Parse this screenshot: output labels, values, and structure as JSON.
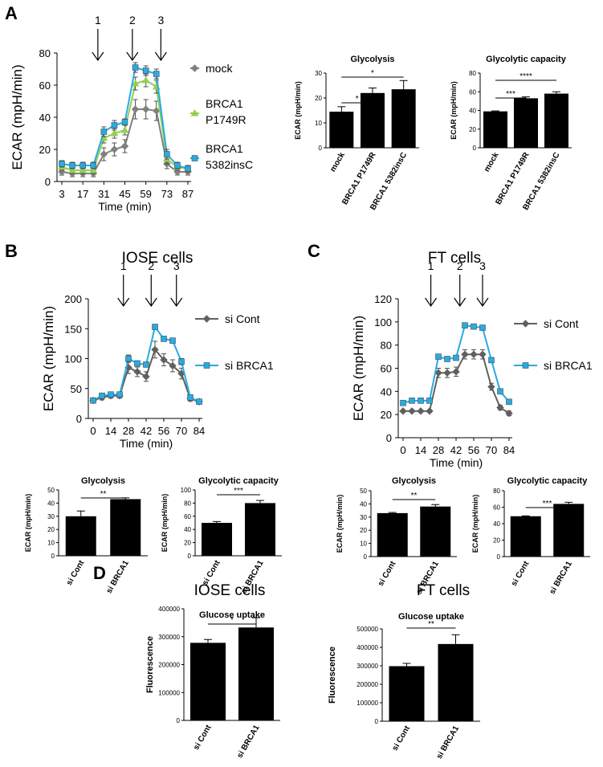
{
  "panels": {
    "A": "A",
    "B": "B",
    "C": "C",
    "D": "D"
  },
  "section_titles": {
    "iose_b": "IOSE cells",
    "ft_c": "FT cells",
    "iose_d": "IOSE cells",
    "ft_d": "FT cells"
  },
  "chart_data": [
    {
      "id": "A_line",
      "type": "line",
      "xlabel": "Time (min)",
      "ylabel": "ECAR (mpH/min)",
      "x": [
        3,
        10,
        17,
        24,
        31,
        38,
        45,
        52,
        59,
        66,
        73,
        80,
        87
      ],
      "xticks": [
        3,
        17,
        31,
        45,
        59,
        73,
        87
      ],
      "ylim": [
        0,
        80
      ],
      "yticks": [
        0,
        20,
        40,
        60,
        80
      ],
      "injections": [
        {
          "label": "1",
          "x": 27
        },
        {
          "label": "2",
          "x": 50
        },
        {
          "label": "3",
          "x": 69
        }
      ],
      "legend_position": "right",
      "series": [
        {
          "name": "mock",
          "color": "#808080",
          "marker": "diamond",
          "values": [
            6,
            5,
            5,
            5,
            17,
            20,
            22,
            45,
            45,
            44,
            11,
            6,
            6
          ],
          "errors": [
            2,
            2,
            2,
            2,
            4,
            4,
            4,
            6,
            6,
            6,
            3,
            2,
            2
          ]
        },
        {
          "name": "BRCA1 P1749R",
          "color": "#92d050",
          "marker": "triangle",
          "values": [
            9,
            7,
            7,
            7,
            27,
            30,
            32,
            61,
            63,
            59,
            14,
            9,
            8
          ],
          "errors": [
            2,
            2,
            2,
            2,
            3,
            3,
            3,
            4,
            4,
            4,
            3,
            2,
            2
          ]
        },
        {
          "name": "BRCA1 5382insC",
          "color": "#29abe2",
          "marker": "square",
          "values": [
            11,
            10,
            10,
            10,
            31,
            35,
            37,
            71,
            69,
            67,
            17,
            10,
            8
          ],
          "errors": [
            2,
            2,
            2,
            2,
            3,
            3,
            2,
            3,
            3,
            3,
            3,
            2,
            2
          ]
        }
      ]
    },
    {
      "id": "A_glycolysis",
      "type": "bar",
      "title": "Glycolysis",
      "ylabel": "ECAR (mpH/min)",
      "categories": [
        "mock",
        "BRCA1 P1749R",
        "BRCA1 5382insC"
      ],
      "values": [
        14.5,
        22,
        23.5
      ],
      "errors": [
        2,
        2,
        3.5
      ],
      "ylim": [
        0,
        30
      ],
      "yticks": [
        0,
        10,
        20,
        30
      ],
      "significance": [
        {
          "from": 0,
          "to": 1,
          "label": "*"
        },
        {
          "from": 0,
          "to": 2,
          "label": "*"
        }
      ]
    },
    {
      "id": "A_capacity",
      "type": "bar",
      "title": "Glycolytic capacity",
      "ylabel": "ECAR (mpH/min)",
      "categories": [
        "mock",
        "BRCA1 P1749R",
        "BRCA1 5382insC"
      ],
      "values": [
        39,
        53,
        58
      ],
      "errors": [
        0.5,
        1.5,
        2
      ],
      "ylim": [
        0,
        80
      ],
      "yticks": [
        0,
        20,
        40,
        60,
        80
      ],
      "significance": [
        {
          "from": 0,
          "to": 1,
          "label": "***"
        },
        {
          "from": 0,
          "to": 2,
          "label": "****"
        }
      ]
    },
    {
      "id": "B_line",
      "type": "line",
      "xlabel": "Time (min)",
      "ylabel": "ECAR (mpH/min)",
      "x": [
        0,
        7,
        14,
        21,
        28,
        35,
        42,
        49,
        56,
        63,
        70,
        77,
        84
      ],
      "xticks": [
        0,
        14,
        28,
        42,
        56,
        70,
        84
      ],
      "ylim": [
        0,
        200
      ],
      "yticks": [
        0,
        50,
        100,
        150,
        200
      ],
      "injections": [
        {
          "label": "1",
          "x": 24
        },
        {
          "label": "2",
          "x": 46
        },
        {
          "label": "3",
          "x": 66
        }
      ],
      "legend_position": "right",
      "series": [
        {
          "name": "si Cont",
          "color": "#606060",
          "marker": "diamond",
          "values": [
            30,
            35,
            38,
            38,
            85,
            78,
            70,
            115,
            98,
            88,
            75,
            33,
            28
          ],
          "errors": [
            3,
            4,
            4,
            4,
            10,
            8,
            8,
            14,
            10,
            10,
            9,
            4,
            3
          ]
        },
        {
          "name": "si BRCA1",
          "color": "#29abe2",
          "marker": "square",
          "values": [
            30,
            38,
            40,
            40,
            100,
            92,
            90,
            153,
            133,
            130,
            95,
            35,
            28
          ],
          "errors": [
            3,
            3,
            3,
            3,
            6,
            4,
            4,
            4,
            3,
            3,
            5,
            3,
            2
          ]
        }
      ]
    },
    {
      "id": "C_line",
      "type": "line",
      "xlabel": "Time (min)",
      "ylabel": "ECAR (mpH/min)",
      "x": [
        0,
        7,
        14,
        21,
        28,
        35,
        42,
        49,
        56,
        63,
        70,
        77,
        84
      ],
      "xticks": [
        0,
        14,
        28,
        42,
        56,
        70,
        84
      ],
      "ylim": [
        0,
        120
      ],
      "yticks": [
        0,
        20,
        40,
        60,
        80,
        100,
        120
      ],
      "injections": [
        {
          "label": "1",
          "x": 22
        },
        {
          "label": "2",
          "x": 45
        },
        {
          "label": "3",
          "x": 63
        }
      ],
      "legend_position": "right",
      "series": [
        {
          "name": "si Cont",
          "color": "#606060",
          "marker": "diamond",
          "values": [
            23,
            23,
            23,
            23,
            56,
            56,
            57,
            72,
            72,
            72,
            44,
            26,
            21
          ],
          "errors": [
            1,
            1,
            1,
            1,
            4,
            4,
            4,
            4,
            4,
            4,
            3,
            2,
            2
          ]
        },
        {
          "name": "si BRCA1",
          "color": "#29abe2",
          "marker": "square",
          "values": [
            30,
            32,
            32,
            32,
            70,
            68,
            69,
            97,
            96,
            95,
            67,
            40,
            31
          ],
          "errors": [
            1,
            1,
            1,
            1,
            2,
            2,
            2,
            2,
            2,
            2,
            2,
            2,
            2
          ]
        }
      ]
    },
    {
      "id": "B_glycolysis",
      "type": "bar",
      "title": "Glycolysis",
      "ylabel": "ECAR (mpH/min)",
      "categories": [
        "si Cont",
        "si BRCA1"
      ],
      "values": [
        30,
        43
      ],
      "errors": [
        4,
        1
      ],
      "ylim": [
        0,
        50
      ],
      "yticks": [
        0,
        10,
        20,
        30,
        40,
        50
      ],
      "significance": [
        {
          "from": 0,
          "to": 1,
          "label": "**"
        }
      ]
    },
    {
      "id": "B_capacity",
      "type": "bar",
      "title": "Glycolytic capacity",
      "ylabel": "ECAR (mpH/min)",
      "categories": [
        "si Cont",
        "si BRCA1"
      ],
      "values": [
        50,
        80
      ],
      "errors": [
        2,
        4
      ],
      "ylim": [
        0,
        100
      ],
      "yticks": [
        0,
        20,
        40,
        60,
        80,
        100
      ],
      "significance": [
        {
          "from": 0,
          "to": 1,
          "label": "***"
        }
      ]
    },
    {
      "id": "C_glycolysis",
      "type": "bar",
      "title": "Glycolysis",
      "ylabel": "ECAR (mpH/min)",
      "categories": [
        "si Cont",
        "si BRCA1"
      ],
      "values": [
        33,
        38
      ],
      "errors": [
        0.5,
        1.5
      ],
      "ylim": [
        0,
        50
      ],
      "yticks": [
        0,
        10,
        20,
        30,
        40,
        50
      ],
      "significance": [
        {
          "from": 0,
          "to": 1,
          "label": "**"
        }
      ]
    },
    {
      "id": "C_capacity",
      "type": "bar",
      "title": "Glycolytic capacity",
      "ylabel": "ECAR (mpH/min)",
      "categories": [
        "si Cont",
        "si BRCA1"
      ],
      "values": [
        49,
        64
      ],
      "errors": [
        0.5,
        2
      ],
      "ylim": [
        0,
        80
      ],
      "yticks": [
        0,
        20,
        40,
        60,
        80
      ],
      "significance": [
        {
          "from": 0,
          "to": 1,
          "label": "***"
        }
      ]
    },
    {
      "id": "D_iose",
      "type": "bar",
      "title": "Glucose uptake",
      "ylabel": "Fluorescence",
      "categories": [
        "si Cont",
        "si BRCA1"
      ],
      "values": [
        278000,
        333000
      ],
      "errors": [
        12000,
        35000
      ],
      "ylim": [
        0,
        400000
      ],
      "yticks": [
        0,
        100000,
        200000,
        300000,
        400000
      ],
      "significance": [
        {
          "from": 0,
          "to": 1,
          "label": "*"
        }
      ]
    },
    {
      "id": "D_ft",
      "type": "bar",
      "title": "Glucose uptake",
      "ylabel": "Fluorescence",
      "categories": [
        "si Cont",
        "si BRCA1"
      ],
      "values": [
        298000,
        418000
      ],
      "errors": [
        15000,
        50000
      ],
      "ylim": [
        0,
        500000
      ],
      "yticks": [
        0,
        100000,
        200000,
        300000,
        400000,
        500000
      ],
      "significance": [
        {
          "from": 0,
          "to": 1,
          "label": "**"
        }
      ]
    }
  ]
}
